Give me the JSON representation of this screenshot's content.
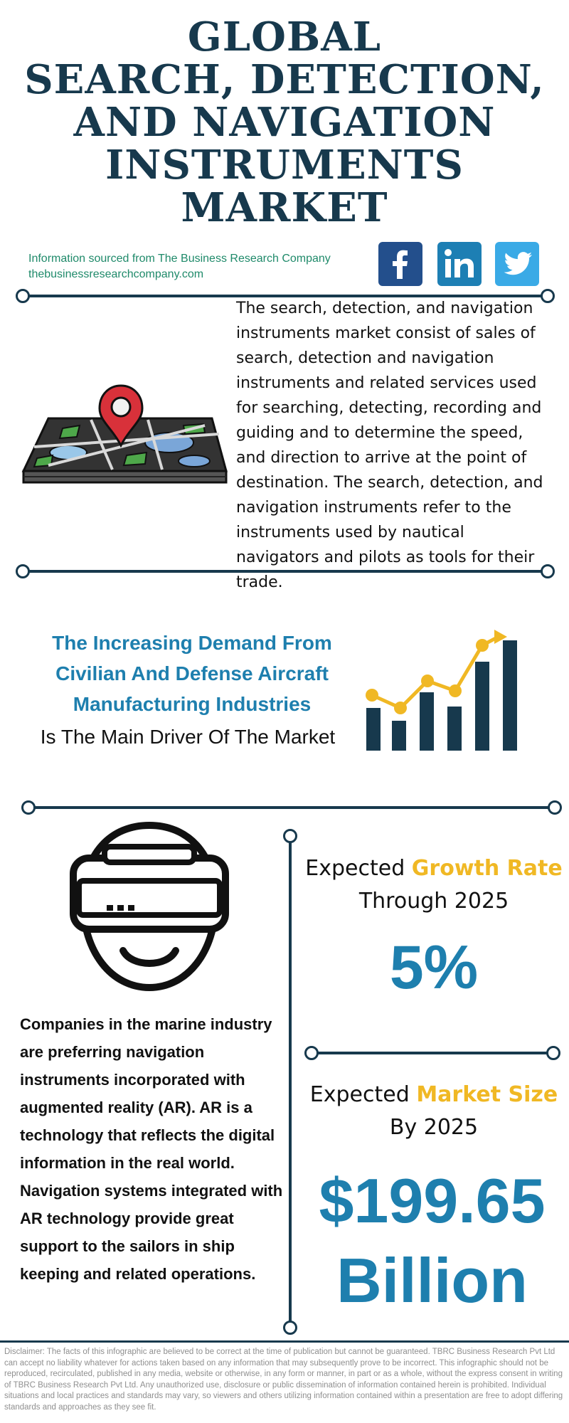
{
  "title": {
    "lines": [
      "GLOBAL",
      "SEARCH, DETECTION,",
      "AND NAVIGATION",
      "INSTRUMENTS",
      "MARKET"
    ]
  },
  "source": {
    "line1": "Information sourced from The Business Research Company",
    "line2": "thebusinessresearchcompany.com"
  },
  "social": {
    "facebook_icon": "facebook-icon",
    "linkedin_icon": "linkedin-icon",
    "twitter_icon": "twitter-icon",
    "linkedin_text": "in",
    "facebook_text": "f"
  },
  "description": "The search, detection, and navigation instruments market consist of sales of search, detection and navigation instruments and related services used for searching, detecting, recording and guiding and to determine the speed, and direction to arrive at the point of destination. The search, detection, and navigation instruments refer to the instruments used by nautical navigators and pilots as tools for their trade.",
  "driver": {
    "highlight_lines": [
      "The Increasing Demand From",
      "Civilian And Defense Aircraft",
      "Manufacturing Industries"
    ],
    "rest": "Is The Main Driver Of The Market"
  },
  "ar_text": "Companies in the marine industry are preferring navigation instruments incorporated with augmented reality (AR). AR is a technology that reflects the digital information in the real world. Navigation systems integrated with AR technology provide great support to the sailors in ship keeping and related operations.",
  "growth": {
    "label_prefix": "Expected ",
    "label_accent": "Growth Rate",
    "label_line2": "Through 2025",
    "value": "5%"
  },
  "market": {
    "label_prefix": "Expected ",
    "label_accent": "Market Size",
    "label_line2": "By 2025",
    "value_line1": "$199.65",
    "value_line2": "Billion"
  },
  "disclaimer": "Disclaimer: The facts of this infographic are believed to be correct at the time of publication but cannot be guaranteed. TBRC Business Research Pvt Ltd can accept no liability whatever for actions taken based on any information that may subsequently prove to be incorrect. This infographic should not be reproduced, recirculated, published in any media, website or otherwise, in any form or manner, in part or as a whole, without the express consent in writing of TBRC Business Research Pvt Ltd. Any unauthorized use, disclosure or public dissemination of information contained herein is prohibited. Individual situations and local practices and standards may vary, so viewers and others utilizing information contained within a presentation are free to adopt differing standards and approaches as they see fit.",
  "colors": {
    "navy": "#17394d",
    "blue": "#1e7fae",
    "yellow": "#f0b824",
    "green": "#1f8a6a"
  }
}
